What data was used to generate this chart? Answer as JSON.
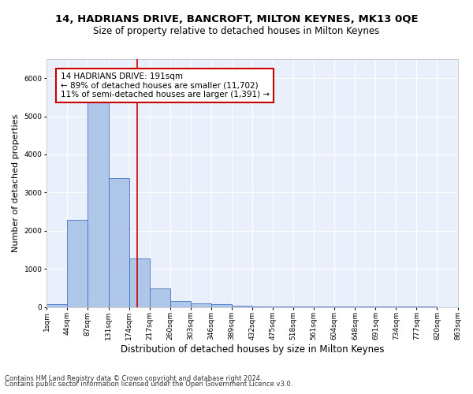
{
  "title1": "14, HADRIANS DRIVE, BANCROFT, MILTON KEYNES, MK13 0QE",
  "title2": "Size of property relative to detached houses in Milton Keynes",
  "xlabel": "Distribution of detached houses by size in Milton Keynes",
  "ylabel": "Number of detached properties",
  "bar_edges": [
    1,
    44,
    87,
    131,
    174,
    217,
    260,
    303,
    346,
    389,
    432,
    475,
    518,
    561,
    604,
    648,
    691,
    734,
    777,
    820,
    863
  ],
  "bar_heights": [
    75,
    2275,
    5425,
    3375,
    1275,
    480,
    160,
    90,
    75,
    40,
    20,
    10,
    5,
    3,
    2,
    1,
    1,
    1,
    1,
    0
  ],
  "bar_color": "#aec6e8",
  "bar_edge_color": "#4472c4",
  "annotation_text": "14 HADRIANS DRIVE: 191sqm\n← 89% of detached houses are smaller (11,702)\n11% of semi-detached houses are larger (1,391) →",
  "vline_x": 191,
  "vline_color": "#cc0000",
  "annotation_box_color": "#ffffff",
  "annotation_box_edge": "#cc0000",
  "ylim": [
    0,
    6500
  ],
  "xlim": [
    1,
    863
  ],
  "tick_labels": [
    "1sqm",
    "44sqm",
    "87sqm",
    "131sqm",
    "174sqm",
    "217sqm",
    "260sqm",
    "303sqm",
    "346sqm",
    "389sqm",
    "432sqm",
    "475sqm",
    "518sqm",
    "561sqm",
    "604sqm",
    "648sqm",
    "691sqm",
    "734sqm",
    "777sqm",
    "820sqm",
    "863sqm"
  ],
  "tick_positions": [
    1,
    44,
    87,
    131,
    174,
    217,
    260,
    303,
    346,
    389,
    432,
    475,
    518,
    561,
    604,
    648,
    691,
    734,
    777,
    820,
    863
  ],
  "footnote1": "Contains HM Land Registry data © Crown copyright and database right 2024.",
  "footnote2": "Contains public sector information licensed under the Open Government Licence v3.0.",
  "background_color": "#eaf0fb",
  "grid_color": "#ffffff",
  "title1_fontsize": 9.5,
  "title2_fontsize": 8.5,
  "xlabel_fontsize": 8.5,
  "ylabel_fontsize": 8,
  "tick_fontsize": 6.5,
  "footnote_fontsize": 6,
  "annotation_fontsize": 7.5
}
